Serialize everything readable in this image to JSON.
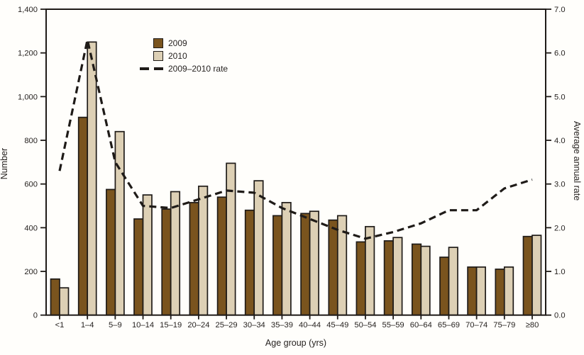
{
  "chart_data": {
    "type": "bar",
    "title": "",
    "categories": [
      "<1",
      "1–4",
      "5–9",
      "10–14",
      "15–19",
      "20–24",
      "25–29",
      "30–34",
      "35–39",
      "40–44",
      "45–49",
      "50–54",
      "55–59",
      "60–64",
      "65–69",
      "70–74",
      "75–79",
      "≥80"
    ],
    "series": [
      {
        "name": "2009",
        "type": "bar",
        "axis": "left",
        "color": "#7a541e",
        "values": [
          165,
          905,
          575,
          440,
          485,
          515,
          540,
          480,
          455,
          465,
          435,
          335,
          340,
          325,
          265,
          220,
          210,
          360
        ]
      },
      {
        "name": "2010",
        "type": "bar",
        "axis": "left",
        "color": "#ddd0b5",
        "values": [
          125,
          1250,
          840,
          550,
          565,
          590,
          695,
          615,
          515,
          475,
          455,
          405,
          355,
          315,
          310,
          220,
          220,
          365
        ]
      },
      {
        "name": "2009–2010 rate",
        "type": "line",
        "axis": "right",
        "dashed": true,
        "color": "#1f1b18",
        "values": [
          3.3,
          6.3,
          3.5,
          2.5,
          2.45,
          2.65,
          2.85,
          2.8,
          2.45,
          2.2,
          1.95,
          1.75,
          1.9,
          2.1,
          2.4,
          2.4,
          2.9,
          3.1
        ]
      }
    ],
    "xlabel": "Age group (yrs)",
    "ylabel_left": "Number",
    "ylabel_right": "Average annual rate",
    "yleft": {
      "min": 0,
      "max": 1400,
      "step": 200,
      "tick_labels": [
        "0",
        "200",
        "400",
        "600",
        "800",
        "1,000",
        "1,200",
        "1,400"
      ]
    },
    "yright": {
      "min": 0,
      "max": 7,
      "step": 1,
      "tick_labels": [
        "0.0",
        "1.0",
        "2.0",
        "3.0",
        "4.0",
        "5.0",
        "6.0",
        "7.0"
      ]
    },
    "legend": {
      "position": "inside-top-left"
    },
    "grid": false,
    "background": "#fffefb",
    "bar_outline_color": "#1f1b18"
  }
}
